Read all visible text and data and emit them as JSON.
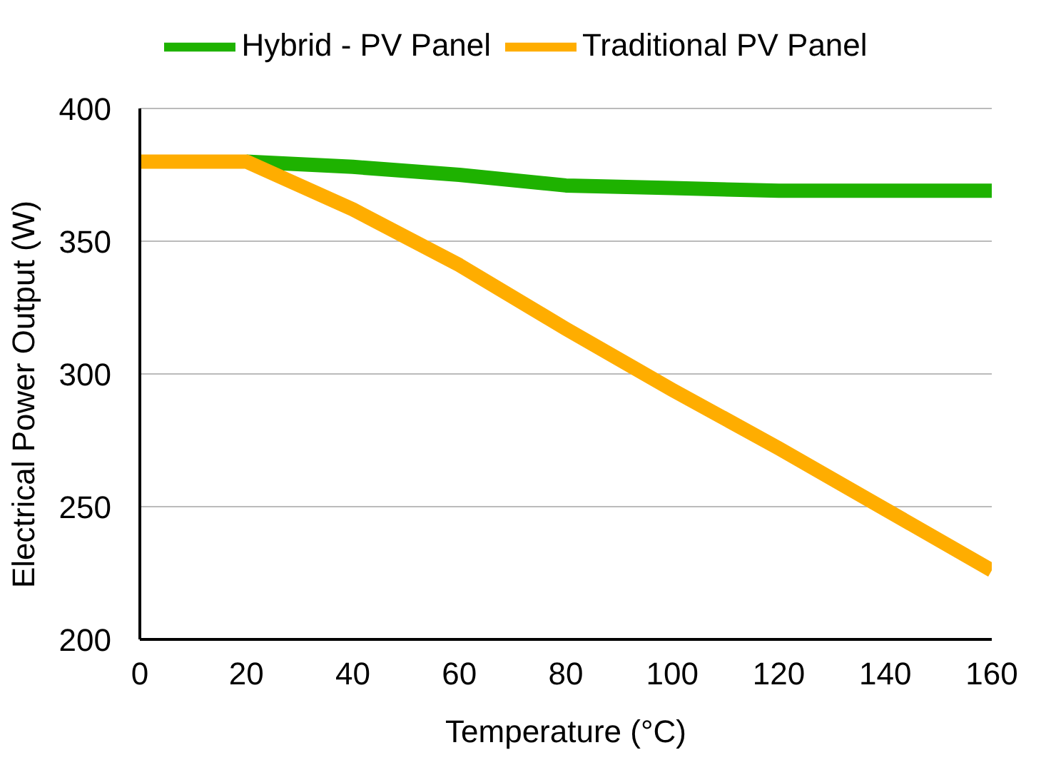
{
  "chart_data": {
    "type": "line",
    "xlabel": "Temperature (°C)",
    "ylabel": "Electrical Power Output (W)",
    "x": [
      0,
      20,
      40,
      60,
      80,
      100,
      120,
      140,
      160
    ],
    "series": [
      {
        "name": "Hybrid - PV Panel",
        "color": "#1eb200",
        "values": [
          null,
          380,
          378,
          375,
          371,
          370,
          369,
          369,
          369
        ]
      },
      {
        "name": "Traditional PV Panel",
        "color": "#ffad00",
        "values": [
          380,
          380,
          362,
          341,
          317,
          294,
          272,
          249,
          226
        ]
      }
    ],
    "xlim": [
      0,
      160
    ],
    "xticks": [
      0,
      20,
      40,
      60,
      80,
      100,
      120,
      140,
      160
    ],
    "ylim": [
      200,
      400
    ],
    "yticks": [
      200,
      250,
      300,
      350,
      400
    ],
    "grid": "y",
    "legend": "top",
    "marker": "none",
    "line_style": "solid"
  }
}
